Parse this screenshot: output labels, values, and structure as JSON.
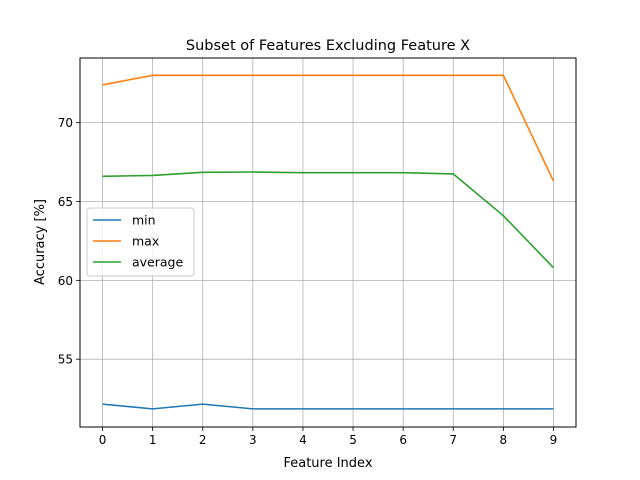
{
  "chart_data": {
    "type": "line",
    "title": "Subset of Features Excluding Feature X",
    "xlabel": "Feature Index",
    "ylabel": "Accuracy [%]",
    "x": [
      0,
      1,
      2,
      3,
      4,
      5,
      6,
      7,
      8,
      9
    ],
    "xlim": [
      -0.45,
      9.45
    ],
    "ylim": [
      50.7,
      74.1
    ],
    "xticks": [
      0,
      1,
      2,
      3,
      4,
      5,
      6,
      7,
      8,
      9
    ],
    "yticks": [
      55,
      60,
      65,
      70
    ],
    "grid": true,
    "legend_position": "center-left",
    "series": [
      {
        "name": "min",
        "color": "#1f77b4",
        "values": [
          52.15,
          51.85,
          52.15,
          51.85,
          51.85,
          51.85,
          51.85,
          51.85,
          51.85,
          51.85
        ]
      },
      {
        "name": "max",
        "color": "#ff7f0e",
        "values": [
          72.4,
          73.0,
          73.0,
          73.0,
          73.0,
          73.0,
          73.0,
          73.0,
          73.0,
          66.3
        ]
      },
      {
        "name": "average",
        "color": "#2ca02c",
        "values": [
          66.6,
          66.65,
          66.85,
          66.87,
          66.83,
          66.83,
          66.83,
          66.75,
          64.1,
          60.8
        ]
      }
    ]
  }
}
